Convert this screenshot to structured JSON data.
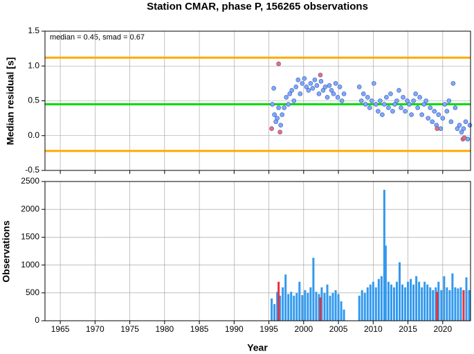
{
  "chart_data": [
    {
      "type": "scatter",
      "title": "Station CMAR, phase P, 156265 observations",
      "ylabel": "Median residual [s]",
      "annotation": "median = 0.45, smad = 0.67",
      "xlim": [
        1962.8,
        2024
      ],
      "xticks": [
        1965,
        1970,
        1975,
        1980,
        1985,
        1990,
        1995,
        2000,
        2005,
        2010,
        2015,
        2020
      ],
      "ylim": [
        -0.5,
        1.5
      ],
      "yticks": [
        -0.5,
        {
          "value": 0,
          "label": "0.0"
        },
        0.5,
        {
          "value": 1,
          "label": "1.0"
        },
        1.5
      ],
      "grid": true,
      "hlines": [
        {
          "value": 1.12,
          "color": "#ffaa00"
        },
        {
          "value": 0.45,
          "color": "#00dd00"
        },
        {
          "value": -0.22,
          "color": "#ffaa00"
        }
      ],
      "series": [
        {
          "color": "#7fa8ff",
          "x": [
            1995.5,
            1995.7,
            1995.8,
            1996.0,
            1996.2,
            1996.4,
            1996.7,
            1996.9,
            1997.2,
            1997.5,
            1997.8,
            1998.0,
            1998.3,
            1998.6,
            1998.9,
            1999.2,
            1999.5,
            1999.8,
            2000.1,
            2000.4,
            2000.7,
            2001.0,
            2001.3,
            2001.6,
            2001.9,
            2002.2,
            2002.5,
            2002.8,
            2003.1,
            2003.4,
            2003.7,
            2004.0,
            2004.3,
            2004.6,
            2004.9,
            2005.2,
            2005.5,
            2005.8,
            2008.0,
            2008.3,
            2008.6,
            2008.9,
            2009.2,
            2009.5,
            2009.8,
            2010.1,
            2010.4,
            2010.7,
            2011.0,
            2011.3,
            2011.6,
            2011.9,
            2012.2,
            2012.5,
            2012.8,
            2013.1,
            2013.4,
            2013.7,
            2014.0,
            2014.3,
            2014.6,
            2014.9,
            2015.2,
            2015.5,
            2015.8,
            2016.1,
            2016.4,
            2016.7,
            2017.0,
            2017.3,
            2017.6,
            2017.9,
            2018.2,
            2018.5,
            2018.8,
            2019.1,
            2019.4,
            2019.7,
            2020.0,
            2020.3,
            2020.6,
            2020.9,
            2021.2,
            2021.5,
            2021.8,
            2022.1,
            2022.4,
            2022.7,
            2023.0,
            2023.3,
            2023.6,
            2023.9
          ],
          "values": [
            0.45,
            0.68,
            0.3,
            0.2,
            0.25,
            0.4,
            0.15,
            0.3,
            0.4,
            0.55,
            0.45,
            0.6,
            0.65,
            0.5,
            0.7,
            0.8,
            0.6,
            0.75,
            0.82,
            0.7,
            0.65,
            0.75,
            0.68,
            0.8,
            0.72,
            0.6,
            0.78,
            0.65,
            0.7,
            0.55,
            0.72,
            0.65,
            0.6,
            0.75,
            0.55,
            0.7,
            0.5,
            0.6,
            0.7,
            0.5,
            0.6,
            0.45,
            0.55,
            0.4,
            0.5,
            0.75,
            0.45,
            0.35,
            0.5,
            0.3,
            0.45,
            0.55,
            0.4,
            0.6,
            0.35,
            0.45,
            0.5,
            0.65,
            0.4,
            0.55,
            0.35,
            0.5,
            0.45,
            0.3,
            0.5,
            0.6,
            0.4,
            0.55,
            0.3,
            0.45,
            0.5,
            0.25,
            0.4,
            0.2,
            0.35,
            0.15,
            0.3,
            0.1,
            0.25,
            0.45,
            0.35,
            0.5,
            0.2,
            0.75,
            0.4,
            0.1,
            0.15,
            0.05,
            0.1,
            0.2,
            -0.05,
            0.15
          ]
        },
        {
          "color": "#ff6a6a",
          "x": [
            1995.4,
            1996.4,
            1996.6,
            2002.4,
            2019.2,
            2022.9,
            2023.1
          ],
          "values": [
            0.1,
            1.03,
            0.05,
            0.87,
            0.1,
            -0.05,
            -0.03
          ]
        }
      ]
    },
    {
      "type": "bar",
      "xlabel": "Year",
      "ylabel": "Observations",
      "xlim": [
        1962.8,
        2024
      ],
      "xticks": [
        1965,
        1970,
        1975,
        1980,
        1985,
        1990,
        1995,
        2000,
        2005,
        2010,
        2015,
        2020
      ],
      "ylim": [
        0,
        2500
      ],
      "yticks": [
        0,
        500,
        1000,
        1500,
        2000,
        2500
      ],
      "grid": true,
      "series": [
        {
          "color": "#3399ee",
          "x": [
            1995.4,
            1995.8,
            1996.2,
            1996.6,
            1997.0,
            1997.4,
            1997.8,
            1998.2,
            1998.6,
            1999.0,
            1999.4,
            1999.8,
            2000.2,
            2000.6,
            2001.0,
            2001.4,
            2001.8,
            2002.2,
            2002.6,
            2003.0,
            2003.4,
            2003.8,
            2004.2,
            2004.6,
            2005.0,
            2005.4,
            2005.8,
            2008.0,
            2008.4,
            2008.8,
            2009.2,
            2009.6,
            2010.0,
            2010.4,
            2010.8,
            2011.2,
            2011.6,
            2011.8,
            2012.2,
            2012.6,
            2013.0,
            2013.4,
            2013.8,
            2014.2,
            2014.6,
            2015.0,
            2015.4,
            2015.8,
            2016.2,
            2016.6,
            2017.0,
            2017.4,
            2017.8,
            2018.2,
            2018.6,
            2019.0,
            2019.4,
            2019.8,
            2020.2,
            2020.6,
            2021.0,
            2021.4,
            2021.8,
            2022.2,
            2022.6,
            2023.4,
            2023.8
          ],
          "values": [
            400,
            300,
            520,
            450,
            600,
            830,
            480,
            520,
            450,
            500,
            700,
            460,
            550,
            500,
            600,
            1130,
            520,
            480,
            600,
            500,
            650,
            450,
            500,
            550,
            480,
            350,
            200,
            450,
            550,
            500,
            600,
            650,
            700,
            600,
            750,
            800,
            2350,
            1350,
            700,
            650,
            600,
            700,
            1050,
            650,
            600,
            700,
            750,
            650,
            800,
            700,
            600,
            700,
            650,
            600,
            550,
            600,
            700,
            550,
            800,
            600,
            550,
            850,
            600,
            580,
            600,
            780,
            550
          ]
        },
        {
          "color": "#e8303a",
          "x": [
            1996.4,
            2002.4,
            2019.2,
            2023.0
          ],
          "values": [
            700,
            420,
            520,
            550
          ]
        }
      ]
    }
  ]
}
